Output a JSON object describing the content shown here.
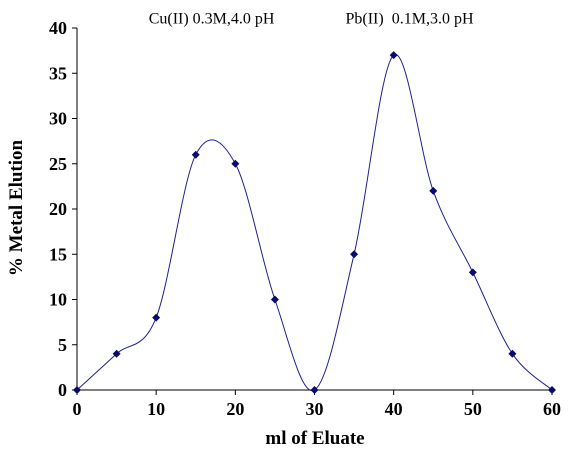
{
  "chart_data": {
    "type": "line",
    "xlabel": "ml of Eluate",
    "ylabel": "% Metal Elution",
    "xlim": [
      0,
      60
    ],
    "ylim": [
      0,
      40
    ],
    "xticks": [
      0,
      10,
      20,
      30,
      40,
      50,
      60
    ],
    "yticks": [
      0,
      5,
      10,
      15,
      20,
      25,
      30,
      35,
      40
    ],
    "grid": false,
    "smooth": true,
    "line_color": "#1f1f8f",
    "marker": "diamond",
    "marker_color": "#0a0a6e",
    "annotations": [
      {
        "text": "Cu(II) 0.3M,4.0 pH",
        "x": 17,
        "y": 40.5
      },
      {
        "text": "Pb(II)  0.1M,3.0 pH",
        "x": 42,
        "y": 40.5
      }
    ],
    "series": [
      {
        "x": [
          0,
          5,
          10,
          15,
          20,
          25,
          30,
          35,
          40,
          45,
          50,
          55,
          60
        ],
        "y": [
          0,
          4,
          8,
          26,
          25,
          10,
          0,
          15,
          37,
          22,
          13,
          4,
          0
        ]
      }
    ]
  }
}
